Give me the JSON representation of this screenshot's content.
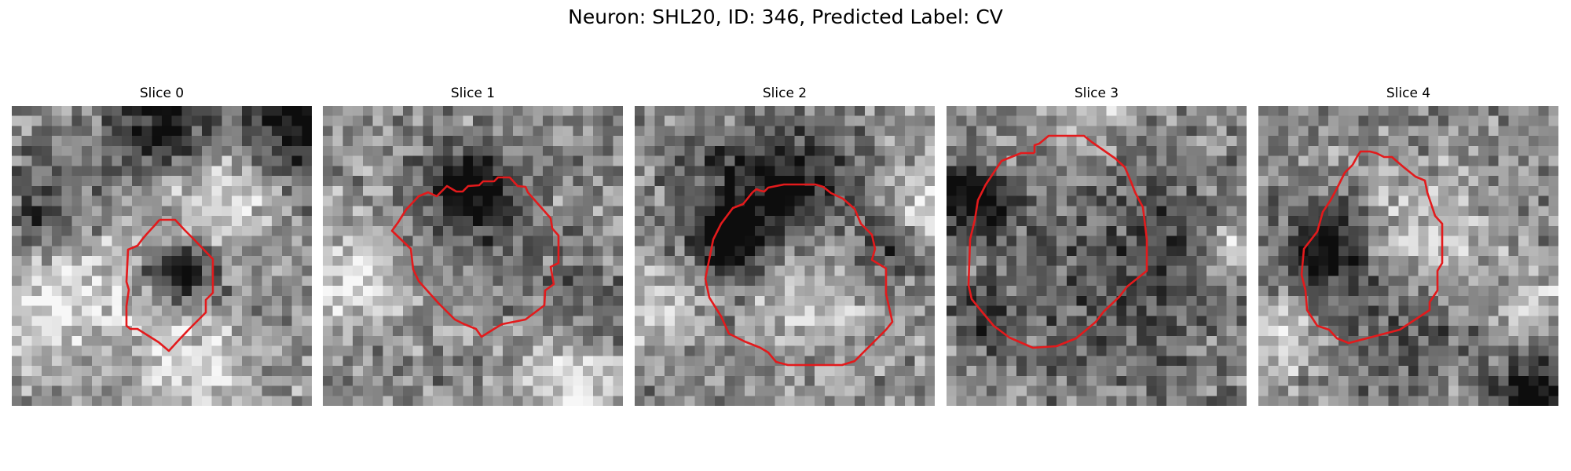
{
  "figure": {
    "title": "Neuron: SHL20, ID: 346, Predicted Label: CV"
  },
  "panels": [
    {
      "title": "Slice 0",
      "seed": 11,
      "dark_patches": [
        [
          0.55,
          0.55,
          0.12,
          0.6
        ],
        [
          0.5,
          0.05,
          0.18,
          0.5
        ],
        [
          0.95,
          0.05,
          0.15,
          0.6
        ],
        [
          0.1,
          0.35,
          0.15,
          0.35
        ],
        [
          0.3,
          0.8,
          0.12,
          0.2
        ]
      ],
      "bright_patches": [
        [
          0.2,
          0.65,
          0.25,
          0.35
        ],
        [
          0.65,
          0.3,
          0.2,
          0.3
        ],
        [
          0.6,
          0.85,
          0.2,
          0.3
        ]
      ]
    },
    {
      "title": "Slice 1",
      "seed": 23,
      "dark_patches": [
        [
          0.47,
          0.25,
          0.13,
          0.6
        ],
        [
          0.5,
          0.5,
          0.25,
          0.2
        ],
        [
          0.9,
          0.7,
          0.15,
          0.25
        ]
      ],
      "bright_patches": [
        [
          0.1,
          0.55,
          0.18,
          0.35
        ],
        [
          0.85,
          0.9,
          0.2,
          0.3
        ],
        [
          0.5,
          0.6,
          0.15,
          0.15
        ]
      ]
    },
    {
      "title": "Slice 2",
      "seed": 37,
      "dark_patches": [
        [
          0.45,
          0.3,
          0.25,
          0.55
        ],
        [
          0.28,
          0.42,
          0.12,
          0.4
        ],
        [
          0.82,
          0.45,
          0.1,
          0.3
        ]
      ],
      "bright_patches": [
        [
          0.55,
          0.55,
          0.2,
          0.35
        ],
        [
          0.08,
          0.65,
          0.12,
          0.3
        ],
        [
          0.95,
          0.3,
          0.12,
          0.3
        ]
      ]
    },
    {
      "title": "Slice 3",
      "seed": 41,
      "dark_patches": [
        [
          0.06,
          0.3,
          0.12,
          0.55
        ],
        [
          0.55,
          0.5,
          0.38,
          0.35
        ],
        [
          0.1,
          0.7,
          0.1,
          0.3
        ]
      ],
      "bright_patches": [
        [
          0.97,
          0.45,
          0.1,
          0.4
        ],
        [
          0.45,
          0.45,
          0.18,
          0.15
        ],
        [
          0.5,
          0.05,
          0.2,
          0.2
        ]
      ]
    },
    {
      "title": "Slice 4",
      "seed": 53,
      "dark_patches": [
        [
          0.2,
          0.45,
          0.14,
          0.55
        ],
        [
          0.9,
          0.95,
          0.12,
          0.6
        ],
        [
          0.45,
          0.72,
          0.25,
          0.25
        ]
      ],
      "bright_patches": [
        [
          0.55,
          0.45,
          0.2,
          0.3
        ],
        [
          0.05,
          0.75,
          0.12,
          0.35
        ],
        [
          0.9,
          0.65,
          0.1,
          0.3
        ]
      ]
    }
  ],
  "colors": {
    "contour": "#e31a1c"
  }
}
